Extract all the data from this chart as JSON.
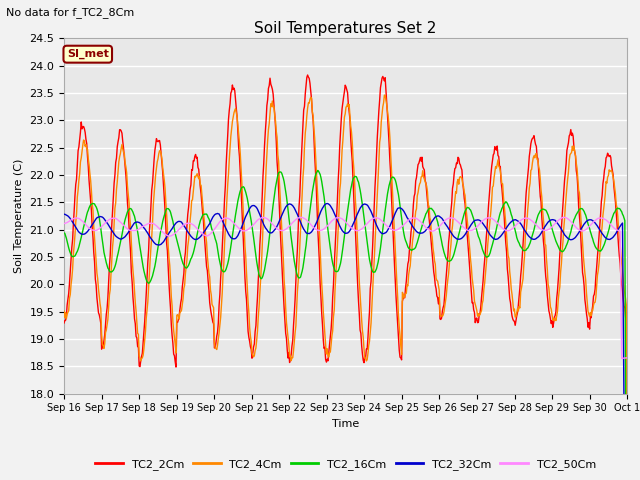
{
  "title": "Soil Temperatures Set 2",
  "top_left_text": "No data for f_TC2_8Cm",
  "ylabel": "Soil Temperature (C)",
  "xlabel": "Time",
  "ylim": [
    18.0,
    24.5
  ],
  "yticks": [
    18.0,
    18.5,
    19.0,
    19.5,
    20.0,
    20.5,
    21.0,
    21.5,
    22.0,
    22.5,
    23.0,
    23.5,
    24.0,
    24.5
  ],
  "fig_facecolor": "#f2f2f2",
  "plot_bg_color": "#e8e8e8",
  "grid_color": "#ffffff",
  "annotation_box": {
    "text": "SI_met",
    "facecolor": "#ffffcc",
    "edgecolor": "#8b0000"
  },
  "series_colors": {
    "TC2_2Cm": "#ff0000",
    "TC2_4Cm": "#ff8800",
    "TC2_16Cm": "#00cc00",
    "TC2_32Cm": "#0000cc",
    "TC2_50Cm": "#ff88ff"
  },
  "xtick_labels": [
    "Sep 16",
    "Sep 17",
    "Sep 18",
    "Sep 19",
    "Sep 20",
    "Sep 21",
    "Sep 22",
    "Sep 23",
    "Sep 24",
    "Sep 25",
    "Sep 26",
    "Sep 27",
    "Sep 28",
    "Sep 29",
    "Sep 30",
    "Oct 1"
  ]
}
